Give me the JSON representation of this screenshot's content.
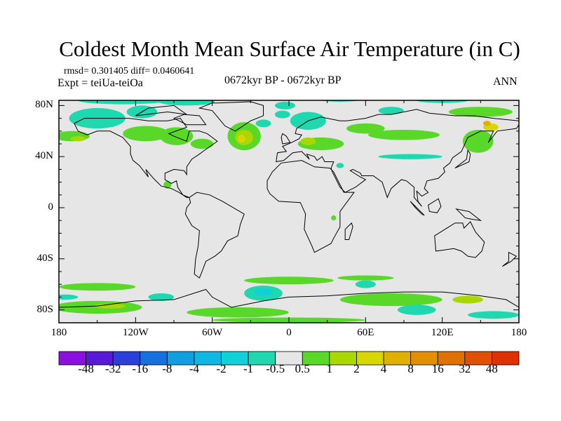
{
  "title": "Coldest Month Mean Surface Air Temperature (in C)",
  "stats": "rmsd= 0.301405 diff= 0.0460641",
  "experiment": "Expt = teiUa-teiOa",
  "period": "0672kyr BP - 0672kyr BP",
  "season": "ANN",
  "lat_labels": [
    "80N",
    "40N",
    "0",
    "40S",
    "80S"
  ],
  "lat_values": [
    80,
    40,
    0,
    -40,
    -80
  ],
  "lon_labels": [
    "180",
    "120W",
    "60W",
    "0",
    "60E",
    "120E",
    "180"
  ],
  "lon_values": [
    -180,
    -120,
    -60,
    0,
    60,
    120,
    180
  ],
  "colorbar": {
    "labels": [
      "-48",
      "-32",
      "-16",
      "-8",
      "-4",
      "-2",
      "-1",
      "-0.5",
      "0.5",
      "1",
      "2",
      "4",
      "8",
      "16",
      "32",
      "48"
    ],
    "colors": [
      "#8a10e0",
      "#5a18d8",
      "#2a40d8",
      "#1870e0",
      "#10a0e0",
      "#10b8e0",
      "#10d0d8",
      "#20d8b0",
      "#e6e6e6",
      "#5ad82a",
      "#a8d800",
      "#d8d800",
      "#e0b000",
      "#e09000",
      "#e07000",
      "#e05000",
      "#e03000"
    ]
  },
  "background": "#e6e6e6"
}
